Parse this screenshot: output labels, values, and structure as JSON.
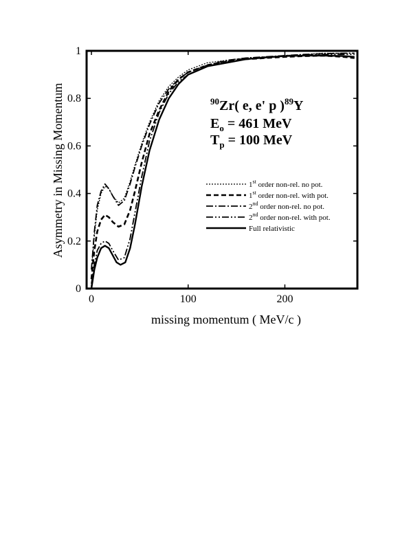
{
  "chart_data": {
    "type": "line",
    "xlabel": "missing momentum ( MeV/c )",
    "ylabel": "Asymmetry in Missing Momentum",
    "xlim": [
      -5,
      275
    ],
    "ylim": [
      0,
      1
    ],
    "x_ticks": [
      0,
      100,
      200
    ],
    "x_tick_labels": [
      "0",
      "100",
      "200"
    ],
    "y_ticks": [
      0,
      0.2,
      0.4,
      0.6,
      0.8,
      1
    ],
    "y_tick_labels": [
      "0",
      "0.2",
      "0.4",
      "0.6",
      "0.8",
      "1"
    ],
    "grid": false,
    "legend_position": "center-right",
    "annotations": {
      "reaction": {
        "sup1": "90",
        "main": "Zr( e, e' p )",
        "sup2": "89",
        "end": "Y"
      },
      "energy": {
        "base": "E",
        "sub": "o",
        "rest": " = 461 MeV"
      },
      "kinetic": {
        "base": "T",
        "sub": "p",
        "rest": " = 100 MeV"
      }
    },
    "series": [
      {
        "name": "1st order non-rel. no pot.",
        "label": {
          "order": "1",
          "sup": "st",
          "rest": " order non-rel. no pot."
        },
        "dash": "2,2",
        "width": 1.3,
        "points": [
          [
            0,
            0.08
          ],
          [
            3,
            0.22
          ],
          [
            6,
            0.33
          ],
          [
            10,
            0.4
          ],
          [
            14,
            0.43
          ],
          [
            18,
            0.42
          ],
          [
            22,
            0.39
          ],
          [
            28,
            0.36
          ],
          [
            34,
            0.38
          ],
          [
            40,
            0.45
          ],
          [
            45,
            0.52
          ],
          [
            52,
            0.61
          ],
          [
            60,
            0.7
          ],
          [
            70,
            0.79
          ],
          [
            80,
            0.85
          ],
          [
            90,
            0.89
          ],
          [
            100,
            0.92
          ],
          [
            120,
            0.95
          ],
          [
            140,
            0.96
          ],
          [
            160,
            0.97
          ],
          [
            180,
            0.975
          ],
          [
            200,
            0.98
          ],
          [
            220,
            0.985
          ],
          [
            240,
            0.99
          ],
          [
            260,
            0.99
          ],
          [
            272,
            0.99
          ]
        ]
      },
      {
        "name": "1st order non-rel. with pot.",
        "label": {
          "order": "1",
          "sup": "st",
          "rest": " order non-rel. with pot."
        },
        "dash": "7,4",
        "width": 2.6,
        "points": [
          [
            0,
            0.04
          ],
          [
            3,
            0.16
          ],
          [
            6,
            0.24
          ],
          [
            10,
            0.29
          ],
          [
            14,
            0.31
          ],
          [
            18,
            0.3
          ],
          [
            22,
            0.28
          ],
          [
            28,
            0.26
          ],
          [
            34,
            0.27
          ],
          [
            40,
            0.33
          ],
          [
            45,
            0.41
          ],
          [
            52,
            0.53
          ],
          [
            60,
            0.65
          ],
          [
            70,
            0.75
          ],
          [
            80,
            0.83
          ],
          [
            90,
            0.88
          ],
          [
            100,
            0.91
          ],
          [
            120,
            0.94
          ],
          [
            140,
            0.955
          ],
          [
            160,
            0.965
          ],
          [
            180,
            0.97
          ],
          [
            200,
            0.975
          ],
          [
            220,
            0.978
          ],
          [
            240,
            0.98
          ],
          [
            260,
            0.975
          ],
          [
            272,
            0.97
          ]
        ]
      },
      {
        "name": "2nd order non-rel. no pot.",
        "label": {
          "order": "2",
          "sup": "nd",
          "rest": " order non-rel. no pot."
        },
        "dash": "10,3,2,3",
        "width": 1.8,
        "points": [
          [
            0,
            0.08
          ],
          [
            3,
            0.24
          ],
          [
            6,
            0.35
          ],
          [
            10,
            0.41
          ],
          [
            14,
            0.44
          ],
          [
            18,
            0.42
          ],
          [
            22,
            0.39
          ],
          [
            28,
            0.35
          ],
          [
            34,
            0.37
          ],
          [
            40,
            0.44
          ],
          [
            45,
            0.51
          ],
          [
            52,
            0.6
          ],
          [
            60,
            0.69
          ],
          [
            70,
            0.78
          ],
          [
            80,
            0.84
          ],
          [
            90,
            0.88
          ],
          [
            100,
            0.91
          ],
          [
            120,
            0.94
          ],
          [
            140,
            0.96
          ],
          [
            160,
            0.97
          ],
          [
            180,
            0.975
          ],
          [
            200,
            0.98
          ],
          [
            220,
            0.985
          ],
          [
            240,
            0.988
          ],
          [
            260,
            0.99
          ],
          [
            272,
            0.99
          ]
        ]
      },
      {
        "name": "2nd order non-rel. with pot.",
        "label": {
          "order": "2",
          "sup": "nd",
          "rest": " order non-rel. with pot."
        },
        "dash": "10,3,2,3,2,3",
        "width": 1.8,
        "points": [
          [
            0,
            0.02
          ],
          [
            3,
            0.1
          ],
          [
            6,
            0.16
          ],
          [
            10,
            0.19
          ],
          [
            14,
            0.2
          ],
          [
            18,
            0.19
          ],
          [
            22,
            0.16
          ],
          [
            28,
            0.12
          ],
          [
            34,
            0.13
          ],
          [
            40,
            0.21
          ],
          [
            45,
            0.32
          ],
          [
            52,
            0.47
          ],
          [
            60,
            0.62
          ],
          [
            70,
            0.74
          ],
          [
            80,
            0.82
          ],
          [
            90,
            0.87
          ],
          [
            100,
            0.9
          ],
          [
            120,
            0.935
          ],
          [
            140,
            0.955
          ],
          [
            160,
            0.965
          ],
          [
            180,
            0.972
          ],
          [
            200,
            0.978
          ],
          [
            220,
            0.982
          ],
          [
            240,
            0.985
          ],
          [
            260,
            0.985
          ],
          [
            272,
            0.985
          ]
        ]
      },
      {
        "name": "Full relativistic",
        "label": {
          "order": "",
          "sup": "",
          "rest": "Full relativistic"
        },
        "dash": "",
        "width": 2.4,
        "points": [
          [
            0,
            0.0
          ],
          [
            3,
            0.08
          ],
          [
            6,
            0.13
          ],
          [
            10,
            0.17
          ],
          [
            14,
            0.18
          ],
          [
            18,
            0.17
          ],
          [
            22,
            0.14
          ],
          [
            26,
            0.11
          ],
          [
            30,
            0.1
          ],
          [
            35,
            0.11
          ],
          [
            40,
            0.17
          ],
          [
            45,
            0.27
          ],
          [
            52,
            0.43
          ],
          [
            60,
            0.58
          ],
          [
            70,
            0.71
          ],
          [
            80,
            0.8
          ],
          [
            90,
            0.86
          ],
          [
            100,
            0.9
          ],
          [
            120,
            0.935
          ],
          [
            140,
            0.95
          ],
          [
            160,
            0.965
          ],
          [
            180,
            0.972
          ],
          [
            200,
            0.978
          ],
          [
            220,
            0.98
          ],
          [
            240,
            0.98
          ],
          [
            260,
            0.978
          ],
          [
            272,
            0.975
          ]
        ]
      }
    ]
  }
}
